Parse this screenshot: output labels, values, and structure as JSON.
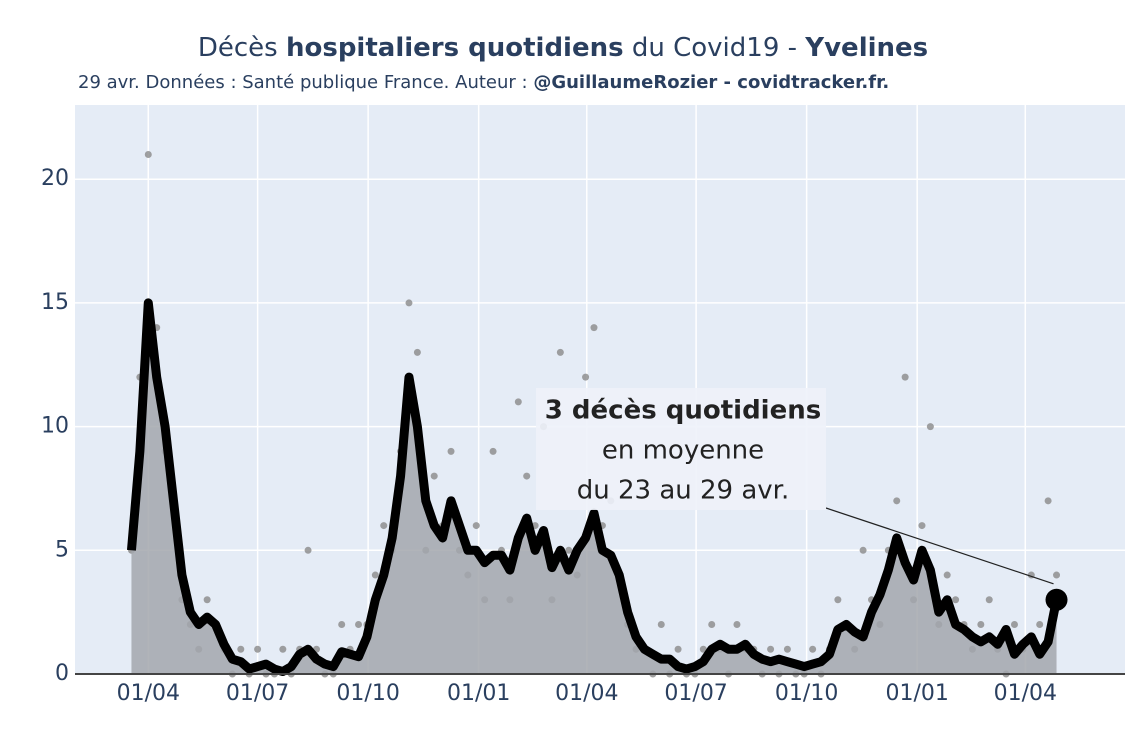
{
  "chart_data": {
    "type": "line",
    "title_parts": [
      {
        "text": "Décès ",
        "bold": false
      },
      {
        "text": "hospitaliers quotidiens",
        "bold": true
      },
      {
        "text": " du Covid19 - ",
        "bold": false
      },
      {
        "text": "Yvelines",
        "bold": true
      }
    ],
    "subtitle_parts": [
      {
        "text": "29 avr. Données : Santé publique France. Auteur : ",
        "bold": false
      },
      {
        "text": "@GuillaumeRozier - covidtracker.fr.",
        "bold": true
      }
    ],
    "annotation": [
      "3 décès quotidiens",
      "en moyenne",
      "du 23 au 29 avr."
    ],
    "x": [
      -14,
      -7,
      0,
      7,
      14,
      21,
      28,
      35,
      42,
      49,
      56,
      63,
      70,
      77,
      84,
      91,
      98,
      105,
      112,
      119,
      126,
      133,
      140,
      147,
      154,
      161,
      168,
      175,
      182,
      189,
      196,
      203,
      210,
      217,
      224,
      231,
      238,
      245,
      252,
      259,
      266,
      273,
      280,
      287,
      294,
      301,
      308,
      315,
      322,
      329,
      336,
      343,
      350,
      357,
      364,
      371,
      378,
      385,
      392,
      399,
      406,
      413,
      420,
      427,
      434,
      441,
      448,
      455,
      462,
      469,
      476,
      483,
      490,
      497,
      504,
      511,
      518,
      525,
      532,
      539,
      546,
      553,
      560,
      567,
      574,
      581,
      588,
      595,
      602,
      609,
      616,
      623,
      630,
      637,
      644,
      651,
      658,
      665,
      672,
      679,
      686,
      693,
      700,
      707,
      714,
      721,
      728,
      735,
      742,
      749,
      756
    ],
    "series": [
      {
        "kind": "scatter",
        "color": "#8a8a8a",
        "values": [
          5,
          12,
          21,
          14,
          9,
          7,
          3,
          2,
          1,
          3,
          2,
          1,
          0,
          1,
          0,
          1,
          0,
          0,
          1,
          0,
          1,
          5,
          1,
          0,
          0,
          2,
          1,
          2,
          2,
          4,
          6,
          5,
          9,
          15,
          13,
          5,
          8,
          6,
          9,
          5,
          4,
          6,
          3,
          9,
          5,
          3,
          11,
          8,
          6,
          10,
          3,
          13,
          5,
          4,
          12,
          14,
          6,
          7,
          4,
          2,
          1,
          1,
          0,
          2,
          0,
          1,
          0,
          0,
          1,
          2,
          1,
          0,
          2,
          1,
          1,
          0,
          1,
          0,
          1,
          0,
          0,
          1,
          0,
          1,
          3,
          2,
          1,
          5,
          3,
          2,
          5,
          7,
          12,
          3,
          6,
          10,
          2,
          4,
          3,
          2,
          1,
          2,
          3,
          1,
          0,
          2,
          1,
          4,
          2,
          7,
          4
        ]
      },
      {
        "kind": "line",
        "color": "#000000",
        "fill": "#a3a7ad",
        "values": [
          5,
          9,
          15,
          12,
          10,
          7,
          4,
          2.5,
          2,
          2.3,
          2,
          1.2,
          0.6,
          0.5,
          0.2,
          0.3,
          0.4,
          0.2,
          0.1,
          0.3,
          0.8,
          1,
          0.6,
          0.4,
          0.3,
          0.9,
          0.8,
          0.7,
          1.5,
          3,
          4,
          5.5,
          8,
          12,
          10,
          7,
          6,
          5.5,
          7,
          6,
          5,
          5,
          4.5,
          4.8,
          4.8,
          4.2,
          5.5,
          6.3,
          5,
          5.8,
          4.3,
          5,
          4.2,
          5,
          5.5,
          6.5,
          5,
          4.8,
          4,
          2.5,
          1.5,
          1,
          0.8,
          0.6,
          0.6,
          0.3,
          0.2,
          0.3,
          0.5,
          1,
          1.2,
          1,
          1,
          1.2,
          0.8,
          0.6,
          0.5,
          0.6,
          0.5,
          0.4,
          0.3,
          0.4,
          0.5,
          0.8,
          1.8,
          2,
          1.7,
          1.5,
          2.5,
          3.2,
          4.2,
          5.5,
          4.5,
          3.8,
          5,
          4.2,
          2.5,
          3,
          2,
          1.8,
          1.5,
          1.3,
          1.5,
          1.2,
          1.8,
          0.8,
          1.2,
          1.5,
          0.8,
          1.3,
          3
        ]
      }
    ],
    "xlim": [
      -61,
      813
    ],
    "ylim": [
      0,
      23
    ],
    "xticks": [
      {
        "value": 0,
        "label": "01/04"
      },
      {
        "value": 91,
        "label": "01/07"
      },
      {
        "value": 183,
        "label": "01/10"
      },
      {
        "value": 275,
        "label": "01/01"
      },
      {
        "value": 365,
        "label": "01/04"
      },
      {
        "value": 456,
        "label": "01/07"
      },
      {
        "value": 548,
        "label": "01/10"
      },
      {
        "value": 640,
        "label": "01/01"
      },
      {
        "value": 730,
        "label": "01/04"
      }
    ],
    "yticks": [
      0,
      5,
      10,
      15,
      20
    ],
    "grid": true
  }
}
